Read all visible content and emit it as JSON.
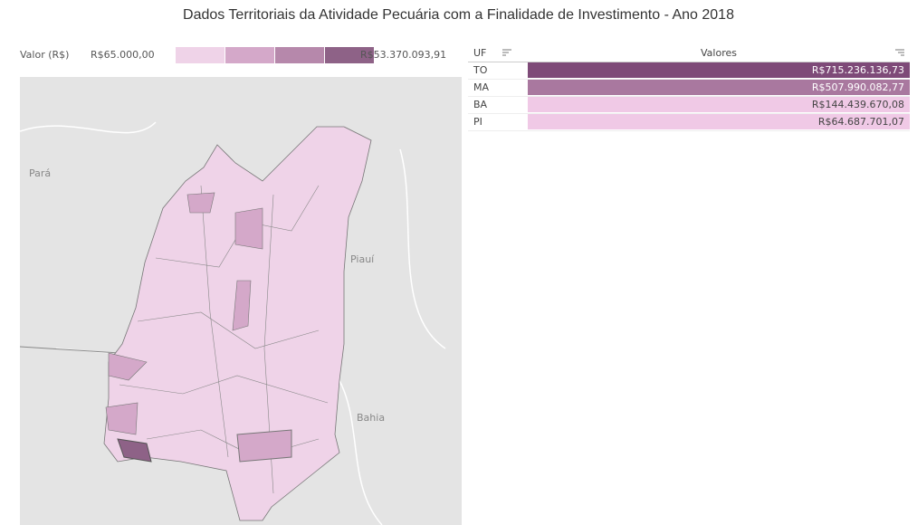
{
  "header": {
    "title": "Dados Territoriais da Atividade Pecuária com a Finalidade de Investimento - Ano 2018"
  },
  "legend": {
    "label": "Valor (R$)",
    "min": "R$65.000,00",
    "max": "R$53.370.093,91",
    "colors": [
      "#efd3e8",
      "#d4a8c9",
      "#b688ab",
      "#8e6287"
    ]
  },
  "map": {
    "labels": [
      "Pará",
      "Piauí",
      "Bahia"
    ]
  },
  "table": {
    "columns": [
      "UF",
      "Valores"
    ],
    "rows": [
      [
        "TO",
        "R$715.236.136,73"
      ],
      [
        "MA",
        "R$507.990.082,77"
      ],
      [
        "BA",
        "R$144.439.670,08"
      ],
      [
        "PI",
        "R$64.687.701,07"
      ]
    ],
    "row_colors": [
      "#7e4a78",
      "#a9789f",
      "#f0c9e6",
      "#f0c9e6"
    ]
  }
}
